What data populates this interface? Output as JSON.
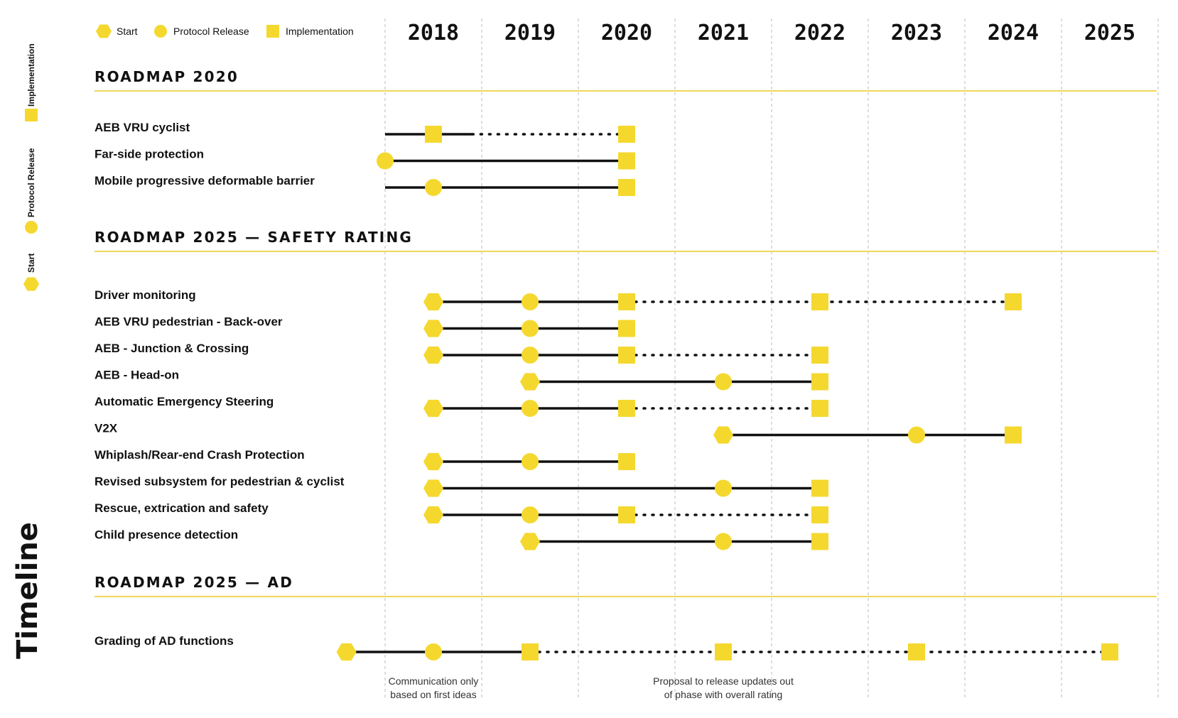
{
  "side_legend": {
    "title": "Timeline",
    "items": [
      {
        "label": "Start",
        "shape": "hexagon"
      },
      {
        "label": "Protocol Release",
        "shape": "circle"
      },
      {
        "label": "Implementation",
        "shape": "square"
      }
    ]
  },
  "colors": {
    "marker": "#F5D82E",
    "line": "#111111",
    "rule": "#F0D85A",
    "grid": "#BBBBBB"
  },
  "chart_data": {
    "type": "timeline",
    "legend": [
      {
        "label": "Start",
        "shape": "hexagon"
      },
      {
        "label": "Protocol Release",
        "shape": "circle"
      },
      {
        "label": "Implementation",
        "shape": "square"
      }
    ],
    "years": [
      "2018",
      "2019",
      "2020",
      "2021",
      "2022",
      "2023",
      "2024",
      "2025"
    ],
    "sections": [
      {
        "title": "ROADMAP 2020",
        "rows": [
          {
            "label": "AEB VRU cyclist",
            "line_from": 2017.5,
            "solid_to": 2018.4,
            "markers": [
              {
                "type": "square",
                "year": 2018
              },
              {
                "type": "square",
                "year": 2020
              }
            ],
            "dotted_to": 2020
          },
          {
            "label": "Far-side protection",
            "line_from": 2017.5,
            "solid_to": 2020,
            "markers": [
              {
                "type": "circle",
                "year": 2017.5
              },
              {
                "type": "square",
                "year": 2020
              }
            ]
          },
          {
            "label": "Mobile progressive deformable barrier",
            "line_from": 2017.5,
            "solid_to": 2020,
            "markers": [
              {
                "type": "circle",
                "year": 2018
              },
              {
                "type": "square",
                "year": 2020
              }
            ]
          }
        ]
      },
      {
        "title": "ROADMAP 2025 — SAFETY RATING",
        "rows": [
          {
            "label": "Driver monitoring",
            "line_from": 2018,
            "solid_to": 2020,
            "dotted_to": 2024,
            "markers": [
              {
                "type": "hexagon",
                "year": 2018
              },
              {
                "type": "circle",
                "year": 2019
              },
              {
                "type": "square",
                "year": 2020
              },
              {
                "type": "square",
                "year": 2022
              },
              {
                "type": "square",
                "year": 2024
              }
            ]
          },
          {
            "label": "AEB VRU pedestrian - Back-over",
            "line_from": 2018,
            "solid_to": 2020,
            "markers": [
              {
                "type": "hexagon",
                "year": 2018
              },
              {
                "type": "circle",
                "year": 2019
              },
              {
                "type": "square",
                "year": 2020
              }
            ]
          },
          {
            "label": "AEB - Junction & Crossing",
            "line_from": 2018,
            "solid_to": 2020,
            "dotted_to": 2022,
            "markers": [
              {
                "type": "hexagon",
                "year": 2018
              },
              {
                "type": "circle",
                "year": 2019
              },
              {
                "type": "square",
                "year": 2020
              },
              {
                "type": "square",
                "year": 2022
              }
            ]
          },
          {
            "label": "AEB - Head-on",
            "line_from": 2019,
            "solid_to": 2022,
            "markers": [
              {
                "type": "hexagon",
                "year": 2019
              },
              {
                "type": "circle",
                "year": 2021
              },
              {
                "type": "square",
                "year": 2022
              }
            ]
          },
          {
            "label": "Automatic Emergency Steering",
            "line_from": 2018,
            "solid_to": 2020,
            "dotted_to": 2022,
            "markers": [
              {
                "type": "hexagon",
                "year": 2018
              },
              {
                "type": "circle",
                "year": 2019
              },
              {
                "type": "square",
                "year": 2020
              },
              {
                "type": "square",
                "year": 2022
              }
            ]
          },
          {
            "label": "V2X",
            "line_from": 2021,
            "solid_to": 2024,
            "markers": [
              {
                "type": "hexagon",
                "year": 2021
              },
              {
                "type": "circle",
                "year": 2023
              },
              {
                "type": "square",
                "year": 2024
              }
            ]
          },
          {
            "label": "Whiplash/Rear-end Crash Protection",
            "line_from": 2018,
            "solid_to": 2020,
            "markers": [
              {
                "type": "hexagon",
                "year": 2018
              },
              {
                "type": "circle",
                "year": 2019
              },
              {
                "type": "square",
                "year": 2020
              }
            ]
          },
          {
            "label": "Revised subsystem for pedestrian & cyclist",
            "line_from": 2018,
            "solid_to": 2022,
            "markers": [
              {
                "type": "hexagon",
                "year": 2018
              },
              {
                "type": "circle",
                "year": 2021
              },
              {
                "type": "square",
                "year": 2022
              }
            ]
          },
          {
            "label": "Rescue, extrication and safety",
            "line_from": 2018,
            "solid_to": 2020,
            "dotted_to": 2022,
            "markers": [
              {
                "type": "hexagon",
                "year": 2018
              },
              {
                "type": "circle",
                "year": 2019
              },
              {
                "type": "square",
                "year": 2020
              },
              {
                "type": "square",
                "year": 2022
              }
            ]
          },
          {
            "label": "Child presence detection",
            "line_from": 2019,
            "solid_to": 2022,
            "markers": [
              {
                "type": "hexagon",
                "year": 2019
              },
              {
                "type": "circle",
                "year": 2021
              },
              {
                "type": "square",
                "year": 2022
              }
            ]
          }
        ]
      },
      {
        "title": "ROADMAP 2025 — AD",
        "rows": [
          {
            "label": "Grading of AD functions",
            "line_from": 2017.1,
            "solid_to": 2019,
            "dotted_to": 2025,
            "markers": [
              {
                "type": "hexagon",
                "year": 2017.1
              },
              {
                "type": "circle",
                "year": 2018
              },
              {
                "type": "square",
                "year": 2019
              },
              {
                "type": "square",
                "year": 2021
              },
              {
                "type": "square",
                "year": 2023
              },
              {
                "type": "square",
                "year": 2025
              }
            ]
          }
        ]
      }
    ],
    "annotations": [
      {
        "lines": [
          "Communication only",
          "based on first ideas"
        ],
        "year": 2018
      },
      {
        "lines": [
          "Proposal to release updates out",
          "of phase with overall rating"
        ],
        "year": 2021
      }
    ]
  }
}
